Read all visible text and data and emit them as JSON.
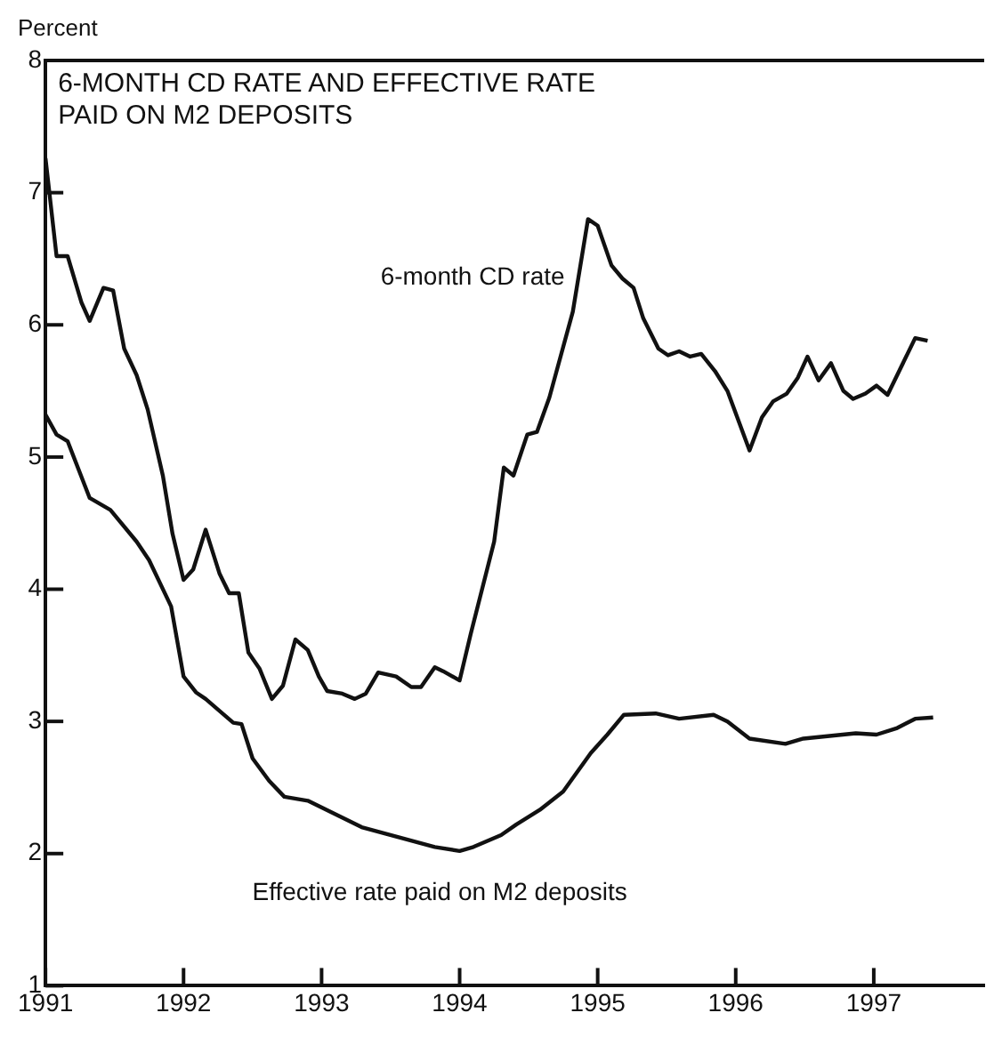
{
  "chart_data": {
    "type": "line",
    "title": "6-MONTH CD RATE AND EFFECTIVE RATE\nPAID ON M2 DEPOSITS",
    "ylabel": "Percent",
    "xlim": [
      1991,
      1997.8
    ],
    "xticks": [
      1991,
      1992,
      1993,
      1994,
      1995,
      1996,
      1997
    ],
    "ylim": [
      1,
      8
    ],
    "yticks": [
      1,
      2,
      3,
      4,
      5,
      6,
      7,
      8
    ],
    "grid": false,
    "legend": false,
    "marker": "none",
    "line_style": "solid",
    "series": [
      {
        "name": "6-month CD rate",
        "color": "#111111",
        "x": [
          1991.0,
          1991.08,
          1991.16,
          1991.26,
          1991.32,
          1991.42,
          1991.49,
          1991.57,
          1991.66,
          1991.74,
          1991.85,
          1991.92,
          1992.0,
          1992.07,
          1992.16,
          1992.26,
          1992.33,
          1992.4,
          1992.47,
          1992.55,
          1992.64,
          1992.72,
          1992.81,
          1992.9,
          1992.98,
          1993.04,
          1993.15,
          1993.24,
          1993.32,
          1993.41,
          1993.54,
          1993.65,
          1993.72,
          1993.82,
          1993.88,
          1994.0,
          1994.08,
          1994.25,
          1994.32,
          1994.39,
          1994.49,
          1994.56,
          1994.65,
          1994.82,
          1994.93,
          1995.0,
          1995.1,
          1995.18,
          1995.26,
          1995.33,
          1995.44,
          1995.51,
          1995.59,
          1995.67,
          1995.75,
          1995.85,
          1995.94,
          1996.1,
          1996.19,
          1996.27,
          1996.37,
          1996.45,
          1996.52,
          1996.6,
          1996.69,
          1996.78,
          1996.85,
          1996.94,
          1997.02,
          1997.1,
          1997.3,
          1997.39
        ],
        "values": [
          7.26,
          6.52,
          6.52,
          6.17,
          6.03,
          6.28,
          6.26,
          5.82,
          5.62,
          5.36,
          4.86,
          4.42,
          4.07,
          4.15,
          4.45,
          4.12,
          3.97,
          3.97,
          3.52,
          3.4,
          3.17,
          3.27,
          3.62,
          3.54,
          3.34,
          3.23,
          3.21,
          3.17,
          3.21,
          3.37,
          3.34,
          3.26,
          3.26,
          3.41,
          3.38,
          3.31,
          3.66,
          4.36,
          4.92,
          4.86,
          5.17,
          5.19,
          5.45,
          6.1,
          6.8,
          6.75,
          6.45,
          6.35,
          6.28,
          6.05,
          5.82,
          5.77,
          5.8,
          5.76,
          5.78,
          5.65,
          5.5,
          5.05,
          5.3,
          5.42,
          5.48,
          5.6,
          5.76,
          5.58,
          5.71,
          5.5,
          5.44,
          5.48,
          5.54,
          5.47,
          5.9,
          5.88
        ]
      },
      {
        "name": "Effective rate paid on M2 deposits",
        "color": "#111111",
        "x": [
          1991.0,
          1991.08,
          1991.16,
          1991.32,
          1991.47,
          1991.66,
          1991.75,
          1991.91,
          1992.0,
          1992.09,
          1992.16,
          1992.36,
          1992.42,
          1992.5,
          1992.62,
          1992.73,
          1992.9,
          1993.29,
          1993.57,
          1993.82,
          1994.0,
          1994.1,
          1994.3,
          1994.41,
          1994.58,
          1994.75,
          1994.95,
          1995.07,
          1995.19,
          1995.42,
          1995.59,
          1995.84,
          1995.94,
          1996.1,
          1996.36,
          1996.49,
          1996.87,
          1997.02,
          1997.17,
          1997.3,
          1997.43
        ],
        "values": [
          5.32,
          5.17,
          5.12,
          4.69,
          4.6,
          4.36,
          4.22,
          3.87,
          3.34,
          3.22,
          3.17,
          2.99,
          2.98,
          2.72,
          2.55,
          2.43,
          2.4,
          2.2,
          2.12,
          2.05,
          2.02,
          2.05,
          2.14,
          2.22,
          2.33,
          2.47,
          2.76,
          2.9,
          3.05,
          3.06,
          3.02,
          3.05,
          3.0,
          2.87,
          2.83,
          2.87,
          2.91,
          2.9,
          2.95,
          3.02,
          3.03
        ]
      }
    ]
  }
}
